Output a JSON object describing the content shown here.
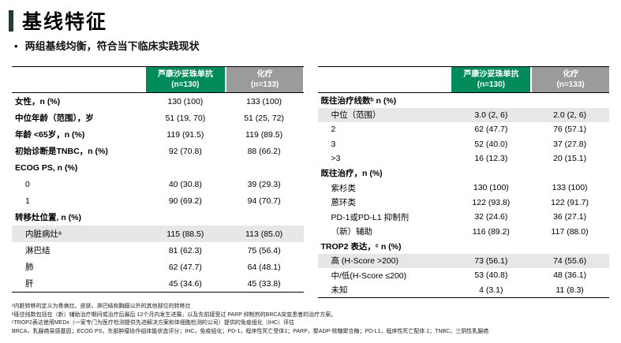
{
  "slide": {
    "title": "基线特征",
    "bullet_marker": "•",
    "bullet_text": "两组基线均衡，符合当下临床实践现状"
  },
  "colors": {
    "header_green": "#008C5A",
    "header_gray": "#9B9B9B",
    "row_highlight": "#E7E7E7",
    "title_accent_bar": "#1f3d32"
  },
  "tables": [
    {
      "name": "baseline-left",
      "columns": [
        {
          "title": "芦康沙妥珠单抗",
          "subtitle": "(n=130)"
        },
        {
          "title": "化疗",
          "subtitle": "(n=133)"
        }
      ],
      "rows": [
        {
          "label": "女性，n (%)",
          "bold": true,
          "v1": "130 (100)",
          "v2": "133 (100)"
        },
        {
          "label": "中位年龄（范围），岁",
          "bold": true,
          "v1": "51 (19, 70)",
          "v2": "51 (25, 72)"
        },
        {
          "label": "年龄 <65岁，n (%)",
          "bold": true,
          "v1": "119 (91.5)",
          "v2": "119 (89.5)"
        },
        {
          "label": "初始诊断是TNBC，n (%)",
          "bold": true,
          "v1": "92 (70.8)",
          "v2": "88 (66.2)"
        },
        {
          "label": "ECOG PS, n (%)",
          "bold": true,
          "v1": "",
          "v2": ""
        },
        {
          "label": "0",
          "indent": true,
          "v1": "40 (30.8)",
          "v2": "39 (29.3)"
        },
        {
          "label": "1",
          "indent": true,
          "v1": "90 (69.2)",
          "v2": "94 (70.7)"
        },
        {
          "label": "转移灶位置, n (%)",
          "bold": true,
          "v1": "",
          "v2": ""
        },
        {
          "label": "内脏病灶ᵃ",
          "indent": true,
          "highlight": true,
          "v1": "115 (88.5)",
          "v2": "113 (85.0)"
        },
        {
          "label": "淋巴结",
          "indent": true,
          "v1": "81 (62.3)",
          "v2": "75 (56.4)"
        },
        {
          "label": "肺",
          "indent": true,
          "v1": "62 (47.7)",
          "v2": "64 (48.1)"
        },
        {
          "label": "肝",
          "indent": true,
          "v1": "45 (34.6)",
          "v2": "45 (33.8)"
        }
      ]
    },
    {
      "name": "baseline-right",
      "columns": [
        {
          "title": "芦康沙妥珠单抗",
          "subtitle": "(n=130)"
        },
        {
          "title": "化疗",
          "subtitle": "(n=133)"
        }
      ],
      "rows": [
        {
          "label": "既往治疗线数ᵇ n (%)",
          "bold": true,
          "v1": "",
          "v2": ""
        },
        {
          "label": "中位（范围）",
          "indent": true,
          "highlight": true,
          "v1": "3.0 (2, 6)",
          "v2": "2.0 (2, 6)"
        },
        {
          "label": "2",
          "indent": true,
          "v1": "62 (47.7)",
          "v2": "76 (57.1)"
        },
        {
          "label": "3",
          "indent": true,
          "v1": "52 (40.0)",
          "v2": "37 (27.8)"
        },
        {
          "label": ">3",
          "indent": true,
          "v1": "16 (12.3)",
          "v2": "20 (15.1)"
        },
        {
          "label": "既往治疗，n (%)",
          "bold": true,
          "v1": "",
          "v2": ""
        },
        {
          "label": "紫杉类",
          "indent": true,
          "v1": "130 (100)",
          "v2": "133 (100)"
        },
        {
          "label": "蒽环类",
          "indent": true,
          "v1": "122 (93.8)",
          "v2": "122 (91.7)"
        },
        {
          "label": "PD-1或PD-L1 抑制剂",
          "indent": true,
          "v1": "32 (24.6)",
          "v2": "36 (27.1)"
        },
        {
          "label": "（新）辅助",
          "indent": true,
          "v1": "116 (89.2)",
          "v2": "117 (88.0)"
        },
        {
          "label": "TROP2 表达，ᶜ n (%)",
          "bold": true,
          "v1": "",
          "v2": ""
        },
        {
          "label": "高 (H-Score >200)",
          "indent": true,
          "highlight": true,
          "v1": "73 (56.1)",
          "v2": "74 (55.6)"
        },
        {
          "label": "中/低(H-Score ≤200)",
          "indent": true,
          "v1": "53 (40.8)",
          "v2": "48 (36.1)"
        },
        {
          "label": "未知",
          "indent": true,
          "v1": "4 (3.1)",
          "v2": "11 (8.3)"
        }
      ]
    }
  ],
  "footnotes": [
    "ᵃ内脏转移的定义为骨病灶、皮肤、淋巴结和胸膜以外的其他部位的转移灶",
    "ᵇ既往线数包括在（新）辅助治疗期间或治疗后最后 12个月内发生进展，以及先前接受过 PARP 抑制剂的BRCA突变患者的治疗方案。",
    "ᶜTROP2表达使用MEDx（一家专门为医疗检测提供先进解决方案和体细胞检测的公司）提供的免疫组化（IHC）评估",
    "BRCA，乳腺癌易感基因；ECOG PS，东部肿瘤协作组体能状态评分；IHC，免疫组化；PD-1，程序性死亡受体1；PARP，聚ADP-核糖聚合酶；PD-L1，程序性死亡配体 1；TNBC，三阴性乳腺癌"
  ]
}
